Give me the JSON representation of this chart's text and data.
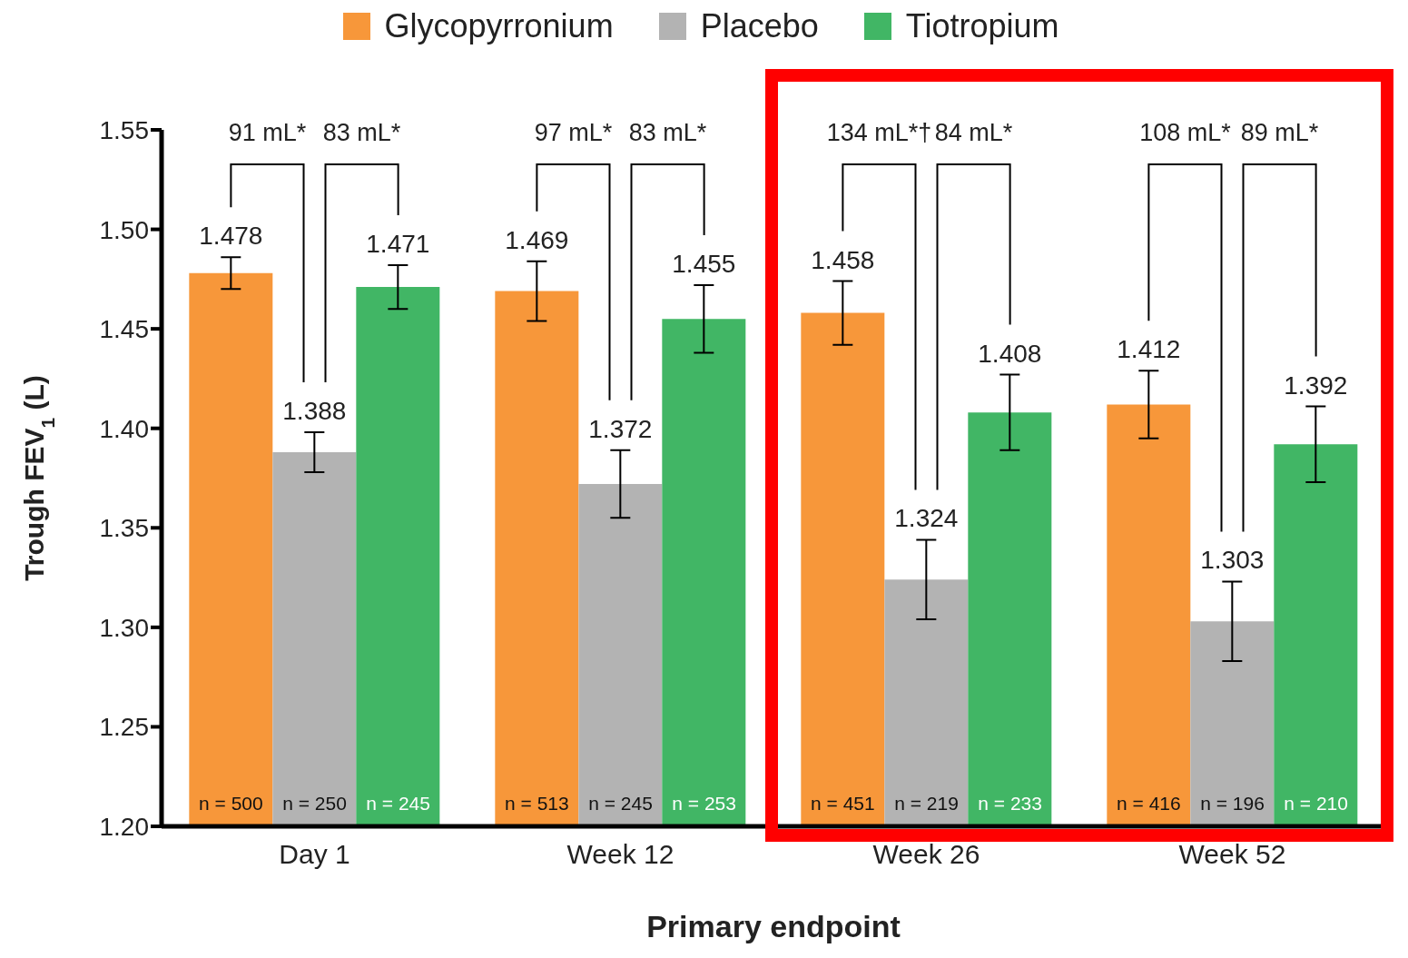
{
  "chart_data": {
    "type": "bar",
    "xlabel": "Primary endpoint",
    "ylabel": "Trough FEV$_{1}$ (L)",
    "categories": [
      "Day 1",
      "Week 12",
      "Week 26",
      "Week 52"
    ],
    "series": [
      {
        "name": "Glycopyrronium",
        "color": "#f7973a",
        "values": [
          1.478,
          1.469,
          1.458,
          1.412
        ],
        "errors": [
          0.008,
          0.015,
          0.016,
          0.017
        ]
      },
      {
        "name": "Placebo",
        "color": "#b3b3b3",
        "values": [
          1.388,
          1.372,
          1.324,
          1.303
        ],
        "errors": [
          0.01,
          0.017,
          0.02,
          0.02
        ]
      },
      {
        "name": "Tiotropium",
        "color": "#41b665",
        "values": [
          1.471,
          1.455,
          1.408,
          1.392
        ],
        "errors": [
          0.011,
          0.017,
          0.019,
          0.019
        ]
      }
    ],
    "ylim": [
      1.2,
      1.55
    ],
    "yticks": [
      {
        "value": 1.2,
        "label": "1.20"
      },
      1.25,
      {
        "value": 1.3,
        "label": "1.30"
      },
      1.35,
      {
        "value": 1.4,
        "label": "1.40"
      },
      1.45,
      {
        "value": 1.5,
        "label": "1.50"
      },
      1.55
    ],
    "data_labels": true,
    "legend": "top",
    "grid": false,
    "annotations": [
      "91 mL*",
      "83 mL*",
      "97 mL*",
      "83 mL*",
      "134 mL*†",
      "84 mL*",
      "108 mL*",
      "89 mL*",
      "n = 500",
      "n = 250",
      "n = 245",
      "n = 513",
      "n = 245",
      "n = 253",
      "n = 451",
      "n = 219",
      "n = 233",
      "n = 416",
      "n = 196",
      "n = 210"
    ]
  }
}
